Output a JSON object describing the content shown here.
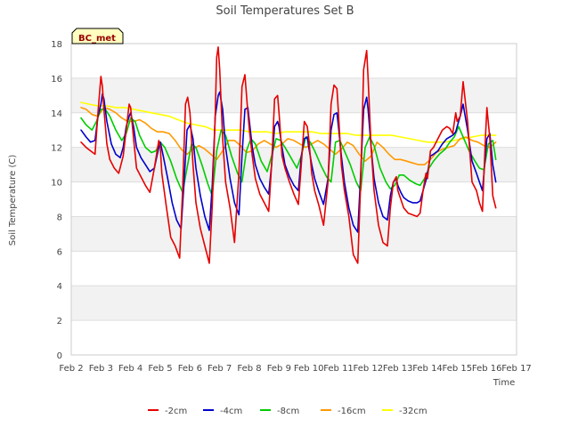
{
  "chart_data": {
    "type": "line",
    "title": "Soil Temperatures Set B",
    "xlabel": "Time",
    "ylabel": "Soil Temperature (C)",
    "station_label": "BC_met",
    "xlim": [
      2,
      17
    ],
    "ylim": [
      0,
      18
    ],
    "x_ticks": [
      2,
      3,
      4,
      5,
      6,
      7,
      8,
      9,
      10,
      11,
      12,
      13,
      14,
      15,
      16,
      17
    ],
    "x_tick_labels": [
      "Feb 2",
      "Feb 3",
      "Feb 4",
      "Feb 5",
      "Feb 6",
      "Feb 7",
      "Feb 8",
      "Feb 9",
      "Feb 10",
      "Feb 11",
      "Feb 12",
      "Feb 13",
      "Feb 14",
      "Feb 15",
      "Feb 16",
      "Feb 17"
    ],
    "y_ticks": [
      0,
      2,
      4,
      6,
      8,
      10,
      12,
      14,
      16,
      18
    ],
    "y_tick_labels": [
      "0",
      "2",
      "4",
      "6",
      "8",
      "10",
      "12",
      "14",
      "16",
      "18"
    ],
    "grid": true,
    "legend_position": "bottom",
    "series": [
      {
        "name": "-2cm",
        "color": "#e60000",
        "x": [
          2.33,
          2.5,
          2.65,
          2.8,
          2.9,
          3.0,
          3.05,
          3.1,
          3.2,
          3.3,
          3.45,
          3.6,
          3.75,
          3.85,
          3.95,
          4.0,
          4.1,
          4.2,
          4.35,
          4.5,
          4.65,
          4.8,
          4.95,
          5.0,
          5.05,
          5.2,
          5.35,
          5.5,
          5.65,
          5.75,
          5.85,
          5.92,
          6.0,
          6.1,
          6.2,
          6.35,
          6.5,
          6.65,
          6.75,
          6.85,
          6.9,
          6.95,
          7.0,
          7.1,
          7.2,
          7.35,
          7.5,
          7.65,
          7.75,
          7.85,
          7.95,
          8.0,
          8.1,
          8.2,
          8.35,
          8.5,
          8.65,
          8.75,
          8.85,
          8.95,
          9.0,
          9.1,
          9.2,
          9.35,
          9.5,
          9.65,
          9.75,
          9.85,
          9.95,
          10.0,
          10.1,
          10.2,
          10.35,
          10.5,
          10.65,
          10.75,
          10.85,
          10.95,
          11.0,
          11.1,
          11.2,
          11.35,
          11.5,
          11.65,
          11.75,
          11.85,
          11.95,
          12.0,
          12.1,
          12.2,
          12.35,
          12.5,
          12.65,
          12.75,
          12.85,
          12.95,
          13.0,
          13.1,
          13.2,
          13.35,
          13.5,
          13.65,
          13.75,
          13.85,
          13.95,
          14.0,
          14.1,
          14.2,
          14.35,
          14.5,
          14.65,
          14.75,
          14.85,
          14.95,
          15.0,
          15.1,
          15.2,
          15.35,
          15.5,
          15.65,
          15.75,
          15.85,
          15.95,
          16.0,
          16.1,
          16.2,
          16.3
        ],
        "values": [
          12.3,
          12.0,
          11.8,
          11.6,
          14.0,
          16.1,
          15.5,
          14.2,
          12.2,
          11.3,
          10.8,
          10.5,
          11.5,
          13.0,
          14.5,
          14.3,
          12.5,
          10.8,
          10.3,
          9.8,
          9.4,
          10.8,
          12.4,
          12.0,
          10.5,
          8.6,
          6.8,
          6.3,
          5.6,
          9.5,
          14.5,
          14.9,
          14.0,
          11.0,
          8.8,
          7.3,
          6.3,
          5.3,
          8.6,
          14.0,
          17.2,
          17.8,
          16.5,
          12.5,
          10.0,
          8.5,
          6.5,
          10.5,
          15.5,
          16.2,
          14.0,
          13.0,
          11.5,
          10.2,
          9.3,
          8.8,
          8.3,
          11.0,
          14.8,
          15.0,
          14.0,
          11.5,
          10.8,
          10.0,
          9.3,
          8.7,
          11.0,
          13.5,
          13.2,
          12.5,
          10.5,
          9.5,
          8.6,
          7.5,
          10.0,
          14.5,
          15.6,
          15.4,
          14.0,
          11.0,
          9.5,
          8.0,
          5.8,
          5.3,
          10.0,
          16.5,
          17.6,
          16.0,
          12.0,
          9.5,
          7.5,
          6.5,
          6.3,
          8.5,
          10.0,
          10.3,
          9.5,
          9.0,
          8.5,
          8.2,
          8.1,
          8.0,
          8.2,
          9.5,
          10.5,
          10.2,
          11.8,
          12.0,
          12.5,
          13.0,
          13.2,
          13.1,
          12.8,
          14.0,
          13.5,
          13.8,
          15.8,
          13.5,
          10.0,
          9.5,
          8.8,
          8.3,
          12.5,
          14.3,
          12.5,
          9.2,
          8.5
        ]
      },
      {
        "name": "-4cm",
        "color": "#0000cc",
        "x": [
          2.33,
          2.5,
          2.65,
          2.8,
          2.9,
          3.0,
          3.05,
          3.1,
          3.2,
          3.35,
          3.5,
          3.65,
          3.75,
          3.85,
          3.95,
          4.0,
          4.1,
          4.2,
          4.35,
          4.5,
          4.65,
          4.8,
          4.95,
          5.0,
          5.1,
          5.25,
          5.4,
          5.55,
          5.7,
          5.8,
          5.9,
          6.0,
          6.1,
          6.2,
          6.35,
          6.5,
          6.65,
          6.75,
          6.85,
          6.95,
          7.0,
          7.1,
          7.2,
          7.35,
          7.5,
          7.65,
          7.75,
          7.85,
          7.95,
          8.0,
          8.1,
          8.2,
          8.35,
          8.5,
          8.65,
          8.75,
          8.85,
          8.95,
          9.0,
          9.1,
          9.2,
          9.35,
          9.5,
          9.65,
          9.75,
          9.85,
          9.95,
          10.0,
          10.1,
          10.2,
          10.35,
          10.5,
          10.65,
          10.75,
          10.85,
          10.95,
          11.0,
          11.1,
          11.2,
          11.35,
          11.5,
          11.65,
          11.75,
          11.85,
          11.95,
          12.0,
          12.1,
          12.2,
          12.35,
          12.5,
          12.65,
          12.75,
          12.85,
          12.95,
          13.0,
          13.1,
          13.2,
          13.35,
          13.5,
          13.65,
          13.75,
          13.85,
          13.95,
          14.0,
          14.1,
          14.2,
          14.35,
          14.5,
          14.65,
          14.75,
          14.85,
          14.95,
          15.0,
          15.1,
          15.2,
          15.35,
          15.5,
          15.65,
          15.75,
          15.85,
          15.95,
          16.0,
          16.1,
          16.2,
          16.3
        ],
        "values": [
          13.0,
          12.6,
          12.3,
          12.4,
          13.8,
          14.5,
          15.1,
          14.8,
          13.5,
          12.2,
          11.6,
          11.4,
          12.0,
          13.2,
          13.8,
          14.0,
          13.2,
          12.0,
          11.4,
          11.0,
          10.6,
          10.8,
          12.0,
          12.3,
          11.5,
          10.2,
          8.8,
          7.8,
          7.3,
          10.0,
          13.0,
          13.3,
          12.5,
          10.8,
          9.2,
          8.0,
          7.2,
          9.8,
          13.8,
          15.0,
          15.2,
          14.2,
          12.0,
          10.2,
          8.8,
          8.1,
          11.5,
          14.2,
          14.3,
          13.5,
          12.0,
          11.0,
          10.2,
          9.7,
          9.3,
          11.0,
          13.2,
          13.5,
          13.2,
          12.0,
          11.0,
          10.3,
          9.8,
          9.5,
          11.5,
          12.5,
          12.6,
          12.0,
          11.0,
          10.2,
          9.4,
          8.7,
          10.2,
          13.0,
          13.9,
          14.0,
          13.2,
          11.5,
          10.0,
          8.5,
          7.5,
          7.1,
          10.5,
          14.2,
          14.9,
          14.2,
          12.0,
          10.2,
          8.8,
          8.0,
          7.8,
          9.2,
          10.0,
          10.2,
          9.8,
          9.4,
          9.1,
          8.9,
          8.8,
          8.8,
          8.9,
          9.5,
          10.1,
          10.5,
          11.5,
          11.6,
          11.8,
          12.2,
          12.5,
          12.6,
          12.7,
          12.9,
          13.2,
          13.8,
          14.5,
          13.0,
          11.2,
          10.5,
          10.0,
          9.5,
          11.5,
          12.5,
          12.8,
          11.0,
          10.0
        ]
      },
      {
        "name": "-8cm",
        "color": "#00cc00",
        "x": [
          2.33,
          2.5,
          2.7,
          2.85,
          3.0,
          3.15,
          3.3,
          3.5,
          3.7,
          3.85,
          4.0,
          4.15,
          4.3,
          4.5,
          4.7,
          4.85,
          5.0,
          5.15,
          5.35,
          5.55,
          5.75,
          5.9,
          6.05,
          6.2,
          6.4,
          6.6,
          6.75,
          6.9,
          7.05,
          7.2,
          7.4,
          7.6,
          7.75,
          7.9,
          8.05,
          8.2,
          8.4,
          8.6,
          8.75,
          8.9,
          9.05,
          9.2,
          9.4,
          9.6,
          9.75,
          9.9,
          10.05,
          10.2,
          10.4,
          10.6,
          10.75,
          10.9,
          11.05,
          11.2,
          11.4,
          11.6,
          11.75,
          11.9,
          12.05,
          12.2,
          12.4,
          12.6,
          12.75,
          12.9,
          13.05,
          13.2,
          13.4,
          13.6,
          13.75,
          13.9,
          14.05,
          14.2,
          14.4,
          14.6,
          14.75,
          14.9,
          15.05,
          15.2,
          15.4,
          15.6,
          15.75,
          15.9,
          16.05,
          16.2,
          16.3
        ],
        "values": [
          13.7,
          13.3,
          13.0,
          13.5,
          14.2,
          14.2,
          13.8,
          13.0,
          12.4,
          12.8,
          13.7,
          13.5,
          12.7,
          12.0,
          11.7,
          11.8,
          12.3,
          12.0,
          11.2,
          10.2,
          9.4,
          10.8,
          12.2,
          12.0,
          11.0,
          9.9,
          9.2,
          11.8,
          13.0,
          12.7,
          11.5,
          10.5,
          10.0,
          11.8,
          12.5,
          12.2,
          11.2,
          10.6,
          11.5,
          12.5,
          12.4,
          12.0,
          11.4,
          10.8,
          11.5,
          12.6,
          12.3,
          11.8,
          11.0,
          10.3,
          10.0,
          12.3,
          12.4,
          11.8,
          11.0,
          10.0,
          9.5,
          12.0,
          12.6,
          12.1,
          10.8,
          10.0,
          9.6,
          9.8,
          10.4,
          10.4,
          10.1,
          9.9,
          9.8,
          10.2,
          10.8,
          11.2,
          11.6,
          11.9,
          12.3,
          12.6,
          13.2,
          12.6,
          11.8,
          11.2,
          10.8,
          10.7,
          12.2,
          12.4,
          11.3
        ]
      },
      {
        "name": "-16cm",
        "color": "#ff9900",
        "x": [
          2.33,
          2.5,
          2.7,
          2.9,
          3.1,
          3.3,
          3.5,
          3.7,
          3.9,
          4.1,
          4.3,
          4.5,
          4.7,
          4.9,
          5.1,
          5.3,
          5.5,
          5.7,
          5.9,
          6.1,
          6.3,
          6.5,
          6.7,
          6.9,
          7.1,
          7.3,
          7.5,
          7.7,
          7.9,
          8.1,
          8.3,
          8.5,
          8.7,
          8.9,
          9.1,
          9.3,
          9.5,
          9.7,
          9.9,
          10.1,
          10.3,
          10.5,
          10.7,
          10.9,
          11.1,
          11.3,
          11.5,
          11.7,
          11.9,
          12.1,
          12.3,
          12.5,
          12.7,
          12.9,
          13.1,
          13.3,
          13.5,
          13.7,
          13.9,
          14.1,
          14.3,
          14.5,
          14.7,
          14.9,
          15.1,
          15.3,
          15.5,
          15.7,
          15.9,
          16.1,
          16.3
        ],
        "values": [
          14.3,
          14.2,
          13.9,
          13.8,
          14.3,
          14.2,
          14.0,
          13.7,
          13.5,
          13.5,
          13.6,
          13.4,
          13.1,
          12.9,
          12.9,
          12.8,
          12.4,
          11.9,
          11.6,
          11.9,
          12.1,
          11.9,
          11.6,
          11.3,
          11.8,
          12.4,
          12.4,
          12.1,
          11.7,
          11.8,
          12.2,
          12.4,
          12.2,
          12.0,
          12.2,
          12.5,
          12.4,
          12.2,
          12.0,
          12.2,
          12.4,
          12.2,
          11.9,
          11.6,
          11.9,
          12.3,
          12.1,
          11.6,
          11.2,
          11.5,
          12.3,
          12.0,
          11.6,
          11.3,
          11.3,
          11.2,
          11.1,
          11.0,
          11.0,
          11.3,
          11.7,
          11.9,
          12.0,
          12.1,
          12.5,
          12.6,
          12.4,
          12.3,
          12.1,
          12.0,
          12.3
        ]
      },
      {
        "name": "-32cm",
        "color": "#ffff00",
        "x": [
          2.33,
          2.6,
          2.9,
          3.2,
          3.5,
          3.8,
          4.1,
          4.4,
          4.7,
          5.0,
          5.3,
          5.6,
          5.9,
          6.2,
          6.5,
          6.8,
          7.1,
          7.4,
          7.7,
          8.0,
          8.3,
          8.6,
          8.9,
          9.2,
          9.5,
          9.8,
          10.1,
          10.4,
          10.7,
          11.0,
          11.3,
          11.6,
          11.9,
          12.2,
          12.5,
          12.8,
          13.1,
          13.4,
          13.7,
          14.0,
          14.3,
          14.6,
          14.9,
          15.2,
          15.5,
          15.8,
          16.1,
          16.3
        ],
        "values": [
          14.6,
          14.5,
          14.4,
          14.4,
          14.3,
          14.3,
          14.2,
          14.1,
          14.0,
          13.9,
          13.8,
          13.6,
          13.4,
          13.3,
          13.2,
          13.0,
          13.0,
          13.0,
          13.0,
          12.9,
          12.9,
          12.9,
          12.8,
          12.9,
          12.9,
          12.9,
          12.9,
          12.8,
          12.8,
          12.8,
          12.8,
          12.7,
          12.7,
          12.7,
          12.7,
          12.7,
          12.6,
          12.5,
          12.4,
          12.3,
          12.3,
          12.3,
          12.4,
          12.5,
          12.6,
          12.7,
          12.7,
          12.7
        ]
      }
    ]
  }
}
